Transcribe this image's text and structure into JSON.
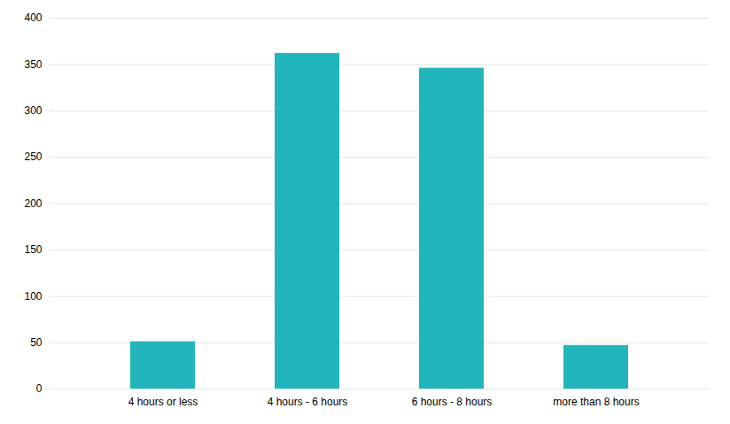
{
  "chart_data": {
    "type": "bar",
    "categories": [
      "4 hours or less",
      "4 hours - 6 hours",
      "6 hours - 8 hours",
      "more than 8 hours"
    ],
    "values": [
      51,
      362,
      346,
      47
    ],
    "color": "#22B5BC",
    "ylim": [
      0,
      400
    ],
    "yticks": [
      0,
      50,
      100,
      150,
      200,
      250,
      300,
      350,
      400
    ],
    "grid": true
  }
}
